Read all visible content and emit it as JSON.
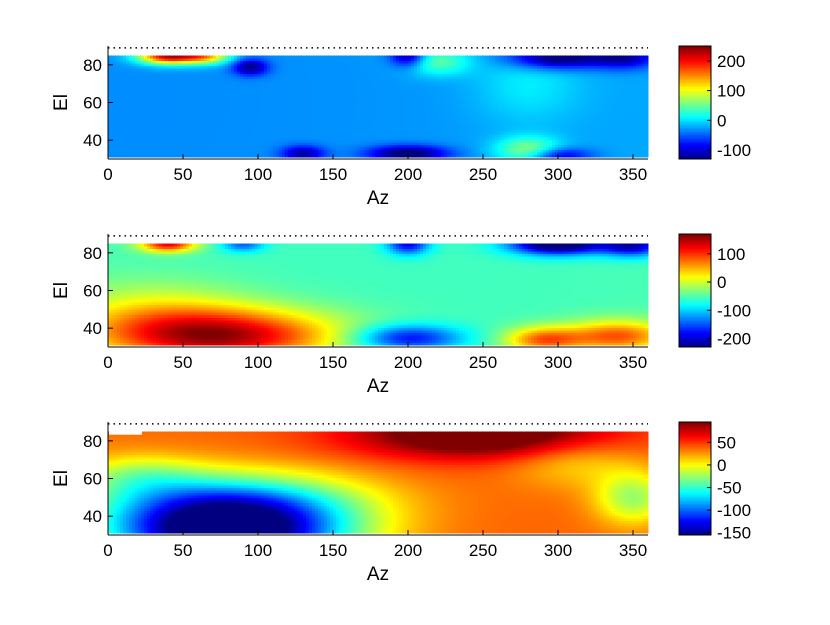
{
  "chart_data": [
    {
      "type": "heatmap",
      "xlabel": "Az",
      "ylabel": "El",
      "xlim": [
        0,
        360
      ],
      "ylim": [
        30,
        90
      ],
      "xticks": [
        0,
        50,
        100,
        150,
        200,
        250,
        300,
        350
      ],
      "yticks": [
        40,
        60,
        80
      ],
      "xtick_labels": [
        "0",
        "50",
        "100",
        "150",
        "200",
        "250",
        "300",
        "350"
      ],
      "ytick_labels": [
        "40",
        "60",
        "80"
      ],
      "data_coverage": {
        "az": [
          0,
          360
        ],
        "el": [
          31,
          85
        ]
      },
      "reference_line": {
        "el": 89,
        "style": "dotted"
      },
      "colormap": "jet",
      "colorbar": {
        "range": [
          -130,
          250
        ],
        "ticks": [
          -100,
          0,
          100,
          200
        ],
        "tick_labels": [
          "-100",
          "0",
          "100",
          "200"
        ]
      },
      "features": [
        {
          "az": 0,
          "el": 60,
          "value": -30,
          "sigma_az": 400,
          "sigma_el": 200
        },
        {
          "az": 40,
          "el": 85,
          "value": 250,
          "sigma_az": 14,
          "sigma_el": 3
        },
        {
          "az": 65,
          "el": 85,
          "value": 150,
          "sigma_az": 12,
          "sigma_el": 3
        },
        {
          "az": 95,
          "el": 79,
          "value": -100,
          "sigma_az": 8,
          "sigma_el": 3
        },
        {
          "az": 200,
          "el": 33,
          "value": -120,
          "sigma_az": 18,
          "sigma_el": 3
        },
        {
          "az": 130,
          "el": 33,
          "value": -90,
          "sigma_az": 10,
          "sigma_el": 3
        },
        {
          "az": 200,
          "el": 85,
          "value": -100,
          "sigma_az": 8,
          "sigma_el": 4
        },
        {
          "az": 220,
          "el": 82,
          "value": 70,
          "sigma_az": 15,
          "sigma_el": 5
        },
        {
          "az": 300,
          "el": 84,
          "value": -130,
          "sigma_az": 22,
          "sigma_el": 4
        },
        {
          "az": 345,
          "el": 84,
          "value": -90,
          "sigma_az": 15,
          "sigma_el": 4
        },
        {
          "az": 280,
          "el": 35,
          "value": 90,
          "sigma_az": 15,
          "sigma_el": 5
        },
        {
          "az": 300,
          "el": 32,
          "value": -80,
          "sigma_az": 15,
          "sigma_el": 3
        },
        {
          "az": 280,
          "el": 70,
          "value": 30,
          "sigma_az": 25,
          "sigma_el": 15
        }
      ]
    },
    {
      "type": "heatmap",
      "xlabel": "Az",
      "ylabel": "El",
      "xlim": [
        0,
        360
      ],
      "ylim": [
        30,
        90
      ],
      "xticks": [
        0,
        50,
        100,
        150,
        200,
        250,
        300,
        350
      ],
      "yticks": [
        40,
        60,
        80
      ],
      "xtick_labels": [
        "0",
        "50",
        "100",
        "150",
        "200",
        "250",
        "300",
        "350"
      ],
      "ytick_labels": [
        "40",
        "60",
        "80"
      ],
      "data_coverage": {
        "az": [
          0,
          360
        ],
        "el": [
          31,
          85
        ]
      },
      "reference_line": {
        "el": 89,
        "style": "dotted"
      },
      "colormap": "jet",
      "colorbar": {
        "range": [
          -230,
          170
        ],
        "ticks": [
          -200,
          -100,
          0,
          100
        ],
        "tick_labels": [
          "-200",
          "-100",
          "0",
          "100"
        ]
      },
      "features": [
        {
          "az": 180,
          "el": 60,
          "value": -55,
          "sigma_az": 500,
          "sigma_el": 300
        },
        {
          "az": 75,
          "el": 36,
          "value": 200,
          "sigma_az": 55,
          "sigma_el": 10
        },
        {
          "az": 30,
          "el": 48,
          "value": 60,
          "sigma_az": 45,
          "sigma_el": 12
        },
        {
          "az": 90,
          "el": 85,
          "value": -90,
          "sigma_az": 10,
          "sigma_el": 3
        },
        {
          "az": 40,
          "el": 85,
          "value": 180,
          "sigma_az": 13,
          "sigma_el": 3
        },
        {
          "az": 200,
          "el": 35,
          "value": -130,
          "sigma_az": 25,
          "sigma_el": 5
        },
        {
          "az": 200,
          "el": 85,
          "value": -130,
          "sigma_az": 10,
          "sigma_el": 4
        },
        {
          "az": 300,
          "el": 85,
          "value": -220,
          "sigma_az": 22,
          "sigma_el": 4
        },
        {
          "az": 350,
          "el": 84,
          "value": -150,
          "sigma_az": 15,
          "sigma_el": 4
        },
        {
          "az": 290,
          "el": 34,
          "value": 130,
          "sigma_az": 18,
          "sigma_el": 5
        },
        {
          "az": 340,
          "el": 36,
          "value": 140,
          "sigma_az": 25,
          "sigma_el": 6
        }
      ]
    },
    {
      "type": "heatmap",
      "xlabel": "Az",
      "ylabel": "El",
      "xlim": [
        0,
        360
      ],
      "ylim": [
        30,
        90
      ],
      "xticks": [
        0,
        50,
        100,
        150,
        200,
        250,
        300,
        350
      ],
      "yticks": [
        40,
        60,
        80
      ],
      "xtick_labels": [
        "0",
        "50",
        "100",
        "150",
        "200",
        "250",
        "300",
        "350"
      ],
      "ytick_labels": [
        "40",
        "60",
        "80"
      ],
      "data_coverage": {
        "az": [
          0,
          360
        ],
        "el": [
          31,
          85
        ]
      },
      "reference_line": {
        "el": 89,
        "style": "dotted"
      },
      "colormap": "jet",
      "colorbar": {
        "range": [
          -155,
          95
        ],
        "ticks": [
          -150,
          -100,
          -50,
          0,
          50
        ],
        "tick_labels": [
          "-150",
          "-100",
          "-50",
          "0",
          "50"
        ]
      },
      "features": [
        {
          "az": 180,
          "el": 60,
          "value": 40,
          "sigma_az": 500,
          "sigma_el": 300
        },
        {
          "az": 80,
          "el": 30,
          "value": -210,
          "sigma_az": 55,
          "sigma_el": 14
        },
        {
          "az": 80,
          "el": 48,
          "value": -90,
          "sigma_az": 65,
          "sigma_el": 12
        },
        {
          "az": 20,
          "el": 62,
          "value": -40,
          "sigma_az": 30,
          "sigma_el": 8
        },
        {
          "az": 250,
          "el": 84,
          "value": 90,
          "sigma_az": 60,
          "sigma_el": 9
        },
        {
          "az": 310,
          "el": 70,
          "value": -30,
          "sigma_az": 30,
          "sigma_el": 10
        },
        {
          "az": 350,
          "el": 50,
          "value": -60,
          "sigma_az": 18,
          "sigma_el": 10
        }
      ]
    }
  ]
}
